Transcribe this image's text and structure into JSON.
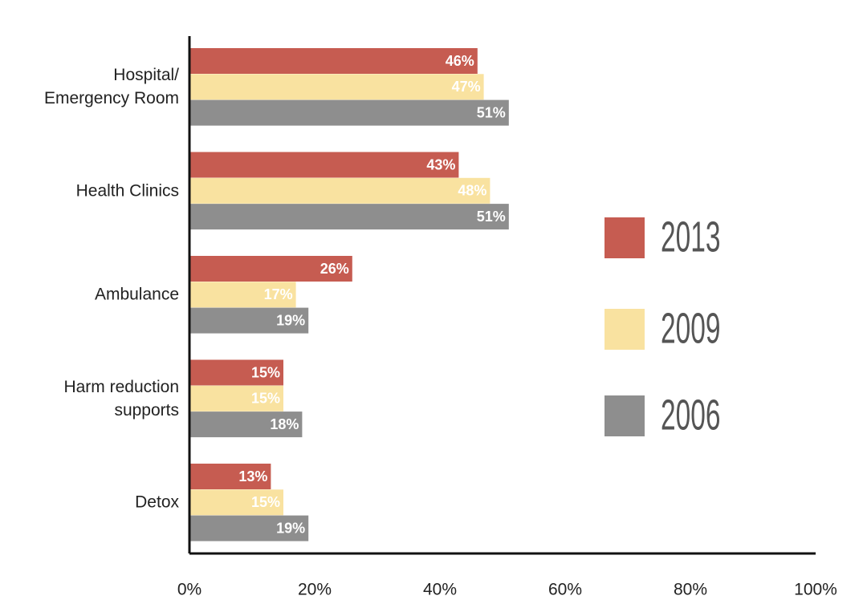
{
  "chart_data": {
    "type": "bar",
    "orientation": "horizontal",
    "categories": [
      "Hospital/\nEmergency Room",
      "Health Clinics",
      "Ambulance",
      "Harm reduction\nsupports",
      "Detox"
    ],
    "series": [
      {
        "name": "2013",
        "color": "#c65c51",
        "values": [
          46,
          43,
          26,
          15,
          13
        ],
        "value_labels": [
          "46%",
          "43%",
          "26%",
          "15%",
          "13%"
        ]
      },
      {
        "name": "2009",
        "color": "#f9e2a0",
        "values": [
          47,
          48,
          17,
          15,
          15
        ],
        "value_labels": [
          "47%",
          "48%",
          "17%",
          "15%",
          "15%"
        ]
      },
      {
        "name": "2006",
        "color": "#8e8e8e",
        "values": [
          51,
          51,
          19,
          18,
          19
        ],
        "value_labels": [
          "51%",
          "51%",
          "19%",
          "18%",
          "19%"
        ]
      }
    ],
    "xlim": [
      0,
      100
    ],
    "xticks": [
      {
        "value": 0,
        "label": "0%"
      },
      {
        "value": 20,
        "label": "20%"
      },
      {
        "value": 40,
        "label": "40%"
      },
      {
        "value": 60,
        "label": "60%"
      },
      {
        "value": 80,
        "label": "80%"
      },
      {
        "value": 100,
        "label": "100%"
      }
    ],
    "legend": "right"
  }
}
